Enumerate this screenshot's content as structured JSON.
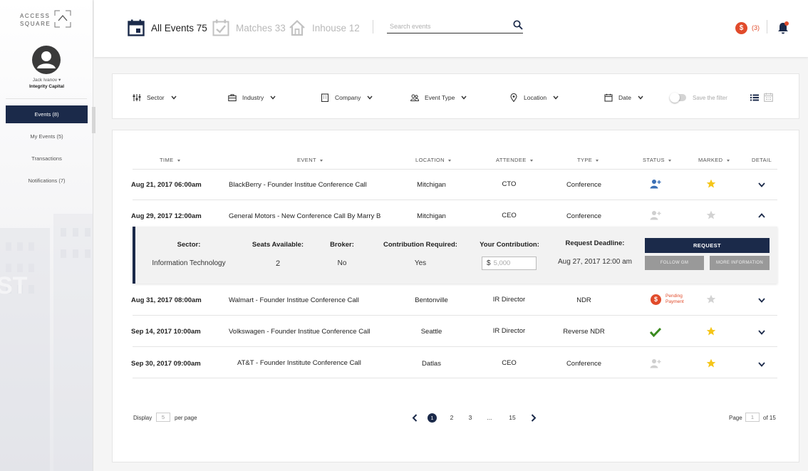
{
  "brand": {
    "line1": "ACCESS",
    "line2": "SQUARE"
  },
  "user": {
    "name": "Jack Ivanov",
    "company": "Integrity Capital"
  },
  "sidebar": {
    "items": [
      {
        "label": "Events (8)"
      },
      {
        "label": "My Events (5)"
      },
      {
        "label": "Transactions"
      },
      {
        "label": "Notifications (7)"
      }
    ]
  },
  "tabs": [
    {
      "label": "All Events 75"
    },
    {
      "label": "Matches 33"
    },
    {
      "label": "Inhouse 12"
    }
  ],
  "search": {
    "placeholder": "Search events"
  },
  "alerts": {
    "payment_count": "(3)",
    "dollar_symbol": "$"
  },
  "filters": [
    {
      "label": "Sector",
      "icon": "sliders-icon"
    },
    {
      "label": "Industry",
      "icon": "briefcase-icon"
    },
    {
      "label": "Company",
      "icon": "building-icon"
    },
    {
      "label": "Event Type",
      "icon": "people-icon"
    },
    {
      "label": "Location",
      "icon": "pin-icon"
    },
    {
      "label": "Date",
      "icon": "calendar-icon"
    }
  ],
  "save_filter_label": "Save the filter",
  "table": {
    "headers": [
      "TIME",
      "EVENT",
      "LOCATION",
      "ATTENDEE",
      "TYPE",
      "STATUS",
      "MARKED",
      "DETAIL"
    ],
    "rows": [
      {
        "time": "Aug 21, 2017  06:00am",
        "event": "BlackBerry - Founder Institue Conference Call",
        "location": "Mitchigan",
        "attendee": "CTO",
        "type": "Conference",
        "status": "add-user-active",
        "marked": true
      },
      {
        "time": "Aug 29, 2017  12:00am",
        "event": "General Motors - New Conference Call By Marry B",
        "location": "Mitchigan",
        "attendee": "CEO",
        "type": "Conference",
        "status": "add-user-inactive",
        "marked": false
      },
      {
        "time": "Aug 31, 2017  08:00am",
        "event": "Walmart - Founder Institue Conference Call",
        "location": "Bentonville",
        "attendee": "IR Director",
        "type": "NDR",
        "status": "pending-payment",
        "status_text_1": "Pending",
        "status_text_2": "Payment",
        "marked": false
      },
      {
        "time": "Sep 14, 2017  10:00am",
        "event": "Volkswagen - Founder Institue Conference Call",
        "location": "Seattle",
        "attendee": "IR Director",
        "type": "Reverse NDR",
        "status": "confirmed",
        "marked": true
      },
      {
        "time": "Sep 30, 2017  09:00am",
        "event": "AT&T - Founder Institute Conference Call",
        "location": "Datlas",
        "attendee": "CEO",
        "type": "Conference",
        "status": "add-user-inactive",
        "marked": true
      }
    ]
  },
  "detail": {
    "sector_label": "Sector:",
    "sector_value": "Information Technology",
    "seats_label": "Seats Available:",
    "seats_value": "2",
    "broker_label": "Broker:",
    "broker_value": "No",
    "contrib_req_label": "Contribution Required:",
    "contrib_req_value": "Yes",
    "your_contrib_label": "Your Contribution:",
    "currency": "$",
    "contrib_placeholder": "5,000",
    "deadline_label": "Request Deadline:",
    "deadline_value": "Aug 27, 2017 12:00 am",
    "request_btn": "REQUEST",
    "follow_btn": "FOLLOW GM",
    "more_btn": "MORE INFORMATION"
  },
  "pagination": {
    "display_label": "Display",
    "per_page_value": "5",
    "per_page_label": "per page",
    "pages": [
      "1",
      "2",
      "3",
      "...",
      "15"
    ],
    "current": "1",
    "page_label": "Page",
    "page_value": "1",
    "of_label": "of 15"
  },
  "colors": {
    "navy": "#1b2a4a",
    "accent_red": "#e14b2b",
    "star": "#f5c518",
    "check": "#3a8a1f",
    "blue_icon": "#3a6fb5"
  }
}
